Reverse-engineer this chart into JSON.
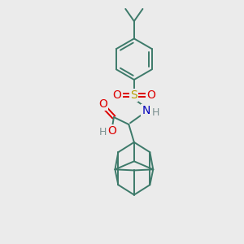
{
  "bg_color": "#ebebeb",
  "bond_color": "#3d7a6a",
  "S_color": "#b8a000",
  "O_color": "#dd0000",
  "N_color": "#0000bb",
  "H_color": "#7a9090",
  "lw": 1.4,
  "fig_size": [
    3.0,
    3.0
  ],
  "dpi": 100,
  "xlim": [
    0,
    10
  ],
  "ylim": [
    0,
    10
  ],
  "font_size_atom": 9
}
